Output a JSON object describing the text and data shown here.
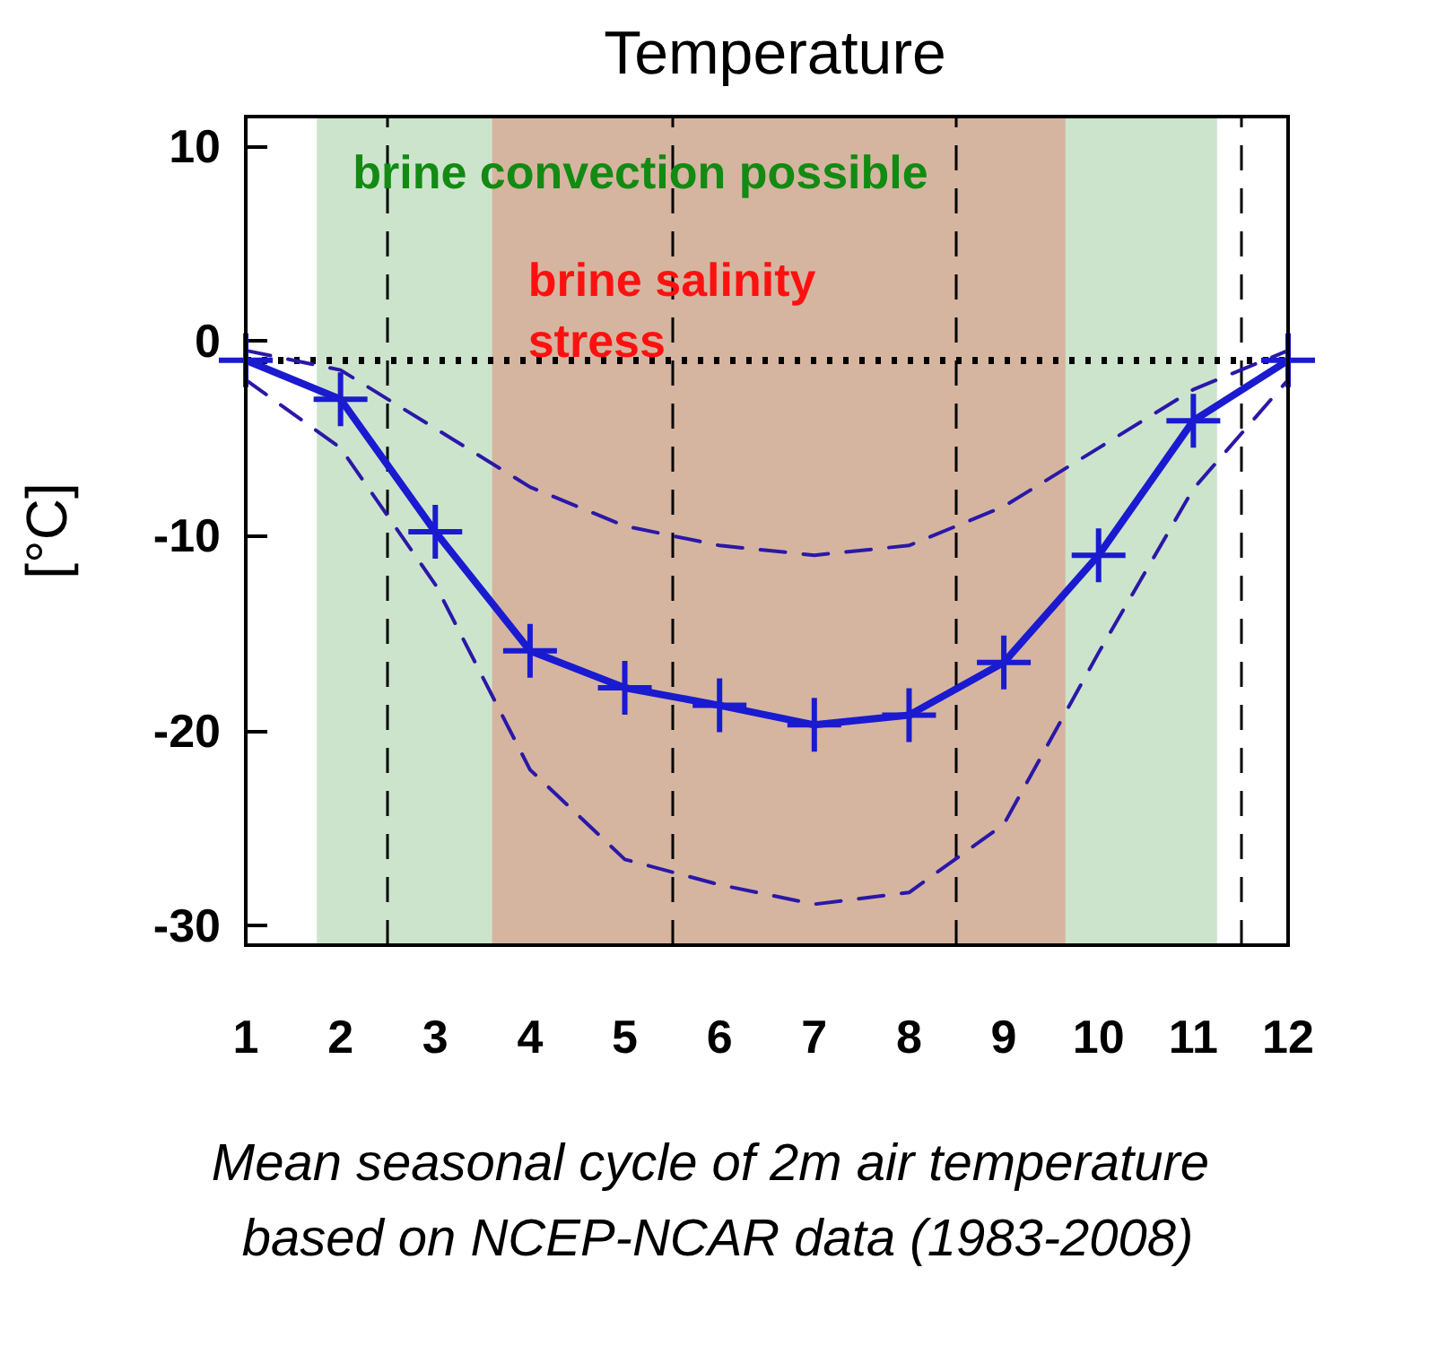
{
  "chart_data": {
    "type": "line",
    "title": "Temperature",
    "ylabel": "[°C]",
    "x": [
      1,
      2,
      3,
      4,
      5,
      6,
      7,
      8,
      9,
      10,
      11,
      12
    ],
    "series": [
      {
        "color": "#1a1ad0",
        "values": [
          -1,
          -3,
          -9.8,
          -15.9,
          -17.8,
          -18.7,
          -19.7,
          -19.2,
          -16.5,
          -11,
          -4.1,
          -1
        ],
        "marker": "cross",
        "line_style": "solid"
      },
      {
        "color": "#2a18a8",
        "values": [
          -0.5,
          -1.5,
          -4.5,
          -7.5,
          -9.5,
          -10.5,
          -11,
          -10.5,
          -8.5,
          -5.5,
          -2.5,
          -0.5
        ],
        "marker": "none",
        "line_style": "dashed"
      },
      {
        "color": "#2a18a8",
        "values": [
          -2,
          -5.5,
          -12.5,
          -22,
          -26.6,
          -27.9,
          -28.9,
          -28.3,
          -24.8,
          -16,
          -7.6,
          -2
        ],
        "marker": "none",
        "line_style": "dashed"
      }
    ],
    "xlim": [
      1,
      12
    ],
    "xticks": [
      1,
      2,
      3,
      4,
      5,
      6,
      7,
      8,
      9,
      10,
      11,
      12
    ],
    "ylim": [
      -31,
      11.5
    ],
    "yticks": [
      -30,
      -20,
      -10,
      0,
      10
    ],
    "bands": [
      {
        "axis": "x",
        "from": 1.75,
        "to": 11.25,
        "label": "brine convection possible",
        "color": "#cce4cc"
      },
      {
        "axis": "x",
        "from": 3.6,
        "to": 9.65,
        "label": "brine salinity\nstress",
        "color": "#d6b5a0"
      }
    ],
    "ref_lines": [
      {
        "axis": "y",
        "value": -1,
        "line_style": "dotted",
        "color": "#000000"
      },
      {
        "axis": "x",
        "value": 2.5,
        "line_style": "dashed",
        "color": "#000000"
      },
      {
        "axis": "x",
        "value": 5.5,
        "line_style": "dashed",
        "color": "#000000"
      },
      {
        "axis": "x",
        "value": 8.5,
        "line_style": "dashed",
        "color": "#000000"
      },
      {
        "axis": "x",
        "value": 11.5,
        "line_style": "dashed",
        "color": "#000000"
      }
    ],
    "annotations": [
      "Mean seasonal cycle of 2m air temperature based on NCEP-NCAR data (1983-2008)"
    ],
    "grid": false
  }
}
